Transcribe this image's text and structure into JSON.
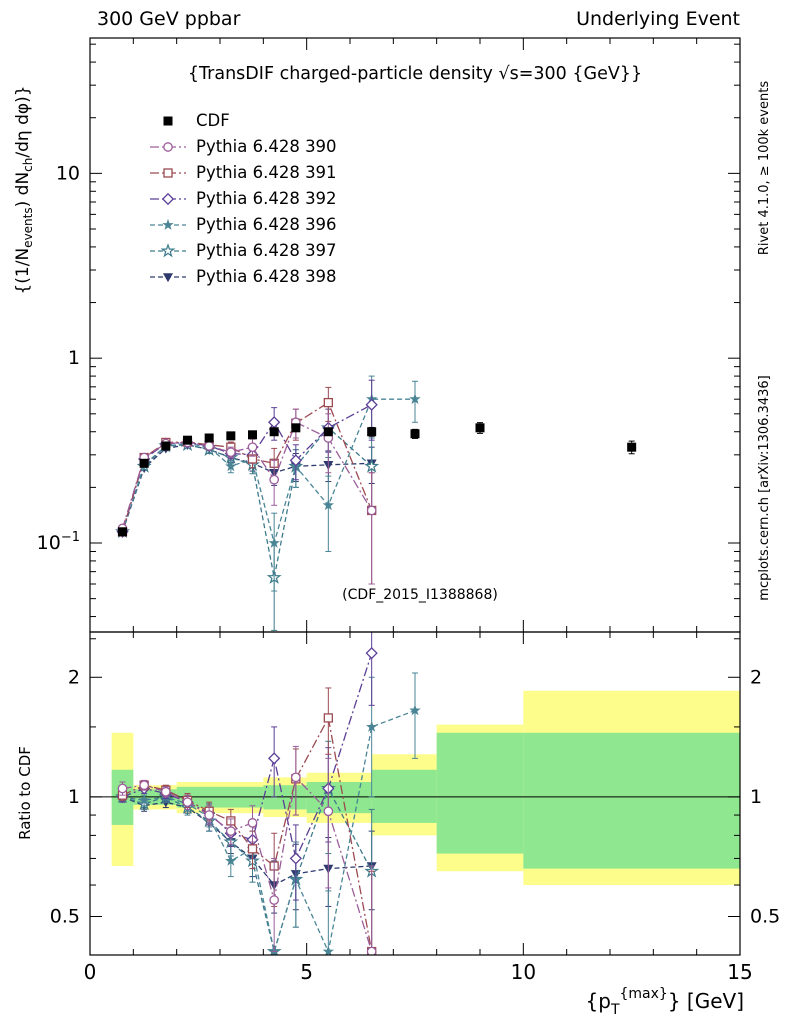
{
  "header": {
    "left": "300 GeV ppbar",
    "right": "Underlying Event"
  },
  "side_notes": {
    "top": "Rivet 4.1.0, ≥ 100k events",
    "bottom": "mcplots.cern.ch [arXiv:1306.3436]"
  },
  "watermark": "(CDF_2015_I1388868)",
  "axes": {
    "ratio_label": "Ratio to CDF",
    "y_label": {
      "p1": "{(1/N",
      "sub1": "events",
      "p2": ") dN",
      "sub2": "ch",
      "p3": "/dη dφ)}"
    },
    "x_label": {
      "p1": "{p",
      "sub": "T",
      "sup": "{max}",
      "p2": "} [GeV]"
    }
  },
  "chart_data": {
    "type": "line",
    "title": "{TransDIF charged-particle density √s=300 {GeV}}",
    "x_range": [
      0,
      15
    ],
    "x_major_ticks": [
      0,
      5,
      10,
      15
    ],
    "x_minor_step": 1,
    "top_panel": {
      "ylog": true,
      "ylim": [
        0.033,
        54
      ],
      "major_ticks": [
        0.1,
        1,
        10
      ],
      "tick_labels": [
        "10⁻¹",
        "1",
        "10"
      ]
    },
    "ratio_panel": {
      "ylog": true,
      "ylim": [
        0.4,
        2.6
      ],
      "major_ticks": [
        0.5,
        1,
        2
      ],
      "tick_labels": [
        "0.5",
        "1",
        "2"
      ],
      "minor_ticks": [
        0.4,
        0.6,
        0.7,
        0.8,
        0.9,
        1.5,
        2.5
      ],
      "reference_line": 1
    },
    "bands": {
      "yellow_color": "#fdfd8c",
      "green_color": "#8fe88f",
      "yellow": [
        [
          0.5,
          1,
          0.67,
          1.45
        ],
        [
          1,
          2,
          0.93,
          1.07
        ],
        [
          2,
          4,
          0.91,
          1.09
        ],
        [
          4,
          5,
          0.89,
          1.12
        ],
        [
          5,
          6.5,
          0.86,
          1.15
        ],
        [
          6.5,
          8,
          0.8,
          1.28
        ],
        [
          8,
          10,
          0.65,
          1.52
        ],
        [
          10,
          15,
          0.6,
          1.85
        ]
      ],
      "green": [
        [
          0.5,
          1,
          0.85,
          1.17
        ],
        [
          1,
          2,
          0.955,
          1.045
        ],
        [
          2,
          4,
          0.94,
          1.06
        ],
        [
          4,
          5,
          0.93,
          1.07
        ],
        [
          5,
          6.5,
          0.91,
          1.09
        ],
        [
          6.5,
          8,
          0.86,
          1.17
        ],
        [
          8,
          10,
          0.72,
          1.45
        ],
        [
          10,
          15,
          0.66,
          1.45
        ]
      ]
    },
    "series": [
      {
        "name": "CDF",
        "color": "#000000",
        "marker": "square-filled",
        "line": "none",
        "x": [
          0.75,
          1.25,
          1.75,
          2.25,
          2.75,
          3.25,
          3.75,
          4.25,
          4.75,
          5.5,
          6.5,
          7.5,
          9,
          12.5
        ],
        "y": [
          0.115,
          0.27,
          0.335,
          0.36,
          0.37,
          0.38,
          0.385,
          0.4,
          0.42,
          0.4,
          0.4,
          0.39,
          0.42,
          0.33
        ],
        "yerr": [
          0.004,
          0.008,
          0.009,
          0.01,
          0.01,
          0.011,
          0.012,
          0.014,
          0.018,
          0.018,
          0.022,
          0.022,
          0.028,
          0.026
        ],
        "ratio": [],
        "ratio_err": []
      },
      {
        "name": "Pythia 6.428 390",
        "color": "#9a5d9a",
        "marker": "circle-open",
        "line": "dashdot",
        "x": [
          0.75,
          1.25,
          1.75,
          2.25,
          2.75,
          3.25,
          3.75,
          4.25,
          4.75,
          5.5,
          6.5
        ],
        "y": [
          0.12,
          0.29,
          0.345,
          0.35,
          0.335,
          0.31,
          0.33,
          0.22,
          0.45,
          0.37,
          0.15
        ],
        "yerr": [
          0.005,
          0.008,
          0.01,
          0.012,
          0.015,
          0.02,
          0.035,
          0.06,
          0.08,
          0.13,
          0.09
        ],
        "ratio": [
          1.05,
          1.07,
          1.03,
          0.97,
          0.9,
          0.82,
          0.86,
          0.55,
          1.12,
          0.92,
          0.37
        ],
        "ratio_err": [
          0.04,
          0.03,
          0.03,
          0.04,
          0.05,
          0.06,
          0.09,
          0.15,
          0.22,
          0.33,
          0.3
        ]
      },
      {
        "name": "Pythia 6.428 391",
        "color": "#9c4a52",
        "marker": "square-open",
        "line": "dashdot",
        "x": [
          0.75,
          1.25,
          1.75,
          2.25,
          2.75,
          3.25,
          3.75,
          4.25,
          4.75,
          5.5,
          6.5
        ],
        "y": [
          0.115,
          0.29,
          0.35,
          0.352,
          0.34,
          0.33,
          0.285,
          0.27,
          0.445,
          0.575,
          0.15
        ],
        "yerr": [
          0.005,
          0.008,
          0.01,
          0.012,
          0.015,
          0.022,
          0.03,
          0.055,
          0.085,
          0.12,
          0.09
        ],
        "ratio": [
          1.01,
          1.07,
          1.04,
          0.98,
          0.92,
          0.87,
          0.74,
          0.67,
          1.11,
          1.58,
          0.37
        ],
        "ratio_err": [
          0.03,
          0.03,
          0.03,
          0.04,
          0.05,
          0.06,
          0.08,
          0.14,
          0.21,
          0.3,
          0.28
        ]
      },
      {
        "name": "Pythia 6.428 392",
        "color": "#5b3e96",
        "marker": "diamond-open",
        "line": "dashdot",
        "x": [
          0.75,
          1.25,
          1.75,
          2.25,
          2.75,
          3.25,
          3.75,
          4.25,
          4.75,
          5.5,
          6.5
        ],
        "y": [
          0.115,
          0.285,
          0.345,
          0.35,
          0.335,
          0.305,
          0.3,
          0.45,
          0.28,
          0.42,
          0.56
        ],
        "yerr": [
          0.005,
          0.008,
          0.01,
          0.012,
          0.015,
          0.02,
          0.03,
          0.09,
          0.06,
          0.11,
          0.2
        ],
        "ratio": [
          1.0,
          1.05,
          1.02,
          0.97,
          0.91,
          0.81,
          0.78,
          1.25,
          0.7,
          1.05,
          2.3
        ],
        "ratio_err": [
          0.03,
          0.03,
          0.03,
          0.04,
          0.05,
          0.06,
          0.08,
          0.25,
          0.15,
          0.28,
          0.6
        ]
      },
      {
        "name": "Pythia 6.428 396",
        "color": "#4a8596",
        "marker": "star-filled",
        "line": "dash",
        "x": [
          0.75,
          1.25,
          1.75,
          2.25,
          2.75,
          3.25,
          3.75,
          4.25,
          4.75,
          5.5,
          6.5,
          7.5
        ],
        "y": [
          0.115,
          0.265,
          0.335,
          0.345,
          0.33,
          0.26,
          0.285,
          0.1,
          0.26,
          0.16,
          0.6,
          0.6
        ],
        "yerr": [
          0.005,
          0.008,
          0.01,
          0.012,
          0.015,
          0.02,
          0.03,
          0.045,
          0.06,
          0.07,
          0.2,
          0.15
        ],
        "ratio": [
          1.0,
          0.98,
          1.0,
          0.96,
          0.89,
          0.69,
          0.74,
          0.26,
          0.62,
          0.4,
          1.5,
          1.65
        ],
        "ratio_err": [
          0.03,
          0.03,
          0.03,
          0.04,
          0.05,
          0.06,
          0.08,
          0.12,
          0.15,
          0.18,
          0.5,
          0.4
        ]
      },
      {
        "name": "Pythia 6.428 397",
        "color": "#3d7a8a",
        "marker": "star-open",
        "line": "dash",
        "x": [
          0.75,
          1.25,
          1.75,
          2.25,
          2.75,
          3.25,
          3.75,
          4.25,
          4.75,
          5.5,
          6.5
        ],
        "y": [
          0.115,
          0.26,
          0.335,
          0.34,
          0.32,
          0.29,
          0.265,
          0.065,
          0.26,
          0.42,
          0.26
        ],
        "yerr": [
          0.005,
          0.008,
          0.01,
          0.012,
          0.015,
          0.02,
          0.028,
          0.035,
          0.06,
          0.13,
          0.11
        ],
        "ratio": [
          1.0,
          0.96,
          1.0,
          0.94,
          0.87,
          0.77,
          0.69,
          0.17,
          0.62,
          1.05,
          0.65
        ],
        "ratio_err": [
          0.03,
          0.03,
          0.03,
          0.04,
          0.05,
          0.06,
          0.08,
          0.1,
          0.15,
          0.33,
          0.28
        ]
      },
      {
        "name": "Pythia 6.428 398",
        "color": "#2e3a6e",
        "marker": "triangle-down-filled",
        "line": "dash",
        "x": [
          0.75,
          1.25,
          1.75,
          2.25,
          2.75,
          3.25,
          3.75,
          4.25,
          4.75,
          5.5,
          6.5
        ],
        "y": [
          0.115,
          0.255,
          0.325,
          0.34,
          0.32,
          0.29,
          0.27,
          0.24,
          0.26,
          0.265,
          0.27
        ],
        "yerr": [
          0.004,
          0.007,
          0.009,
          0.011,
          0.013,
          0.018,
          0.025,
          0.035,
          0.045,
          0.05,
          0.06
        ],
        "ratio": [
          1.0,
          0.95,
          0.97,
          0.94,
          0.86,
          0.77,
          0.7,
          0.6,
          0.64,
          0.66,
          0.67
        ],
        "ratio_err": [
          0.02,
          0.03,
          0.03,
          0.03,
          0.04,
          0.05,
          0.07,
          0.09,
          0.12,
          0.13,
          0.15
        ]
      }
    ]
  }
}
